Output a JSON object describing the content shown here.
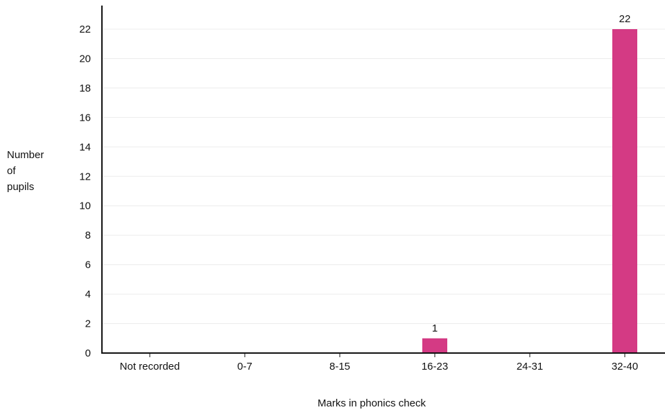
{
  "chart_data": {
    "type": "bar",
    "categories": [
      "Not recorded",
      "0-7",
      "8-15",
      "16-23",
      "24-31",
      "32-40"
    ],
    "values": [
      0,
      0,
      0,
      1,
      0,
      22
    ],
    "data_labels": [
      "",
      "",
      "",
      "1",
      "",
      "22"
    ],
    "xlabel": "Marks in phonics check",
    "ylabel_lines": [
      "Number",
      "of",
      "pupils"
    ],
    "ylim": [
      0,
      23
    ],
    "yticks": [
      0,
      2,
      4,
      6,
      8,
      10,
      12,
      14,
      16,
      18,
      20,
      22
    ],
    "grid": true,
    "bar_color": "#d43a84",
    "grid_color": "#ececec"
  }
}
